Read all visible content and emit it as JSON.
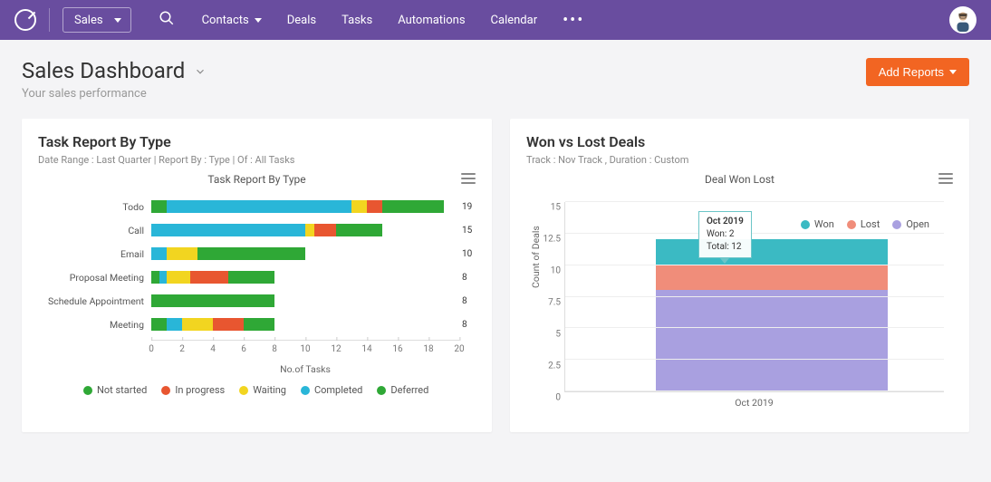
{
  "topbar": {
    "module": "Sales",
    "nav": {
      "contacts": "Contacts",
      "deals": "Deals",
      "tasks": "Tasks",
      "automations": "Automations",
      "calendar": "Calendar"
    }
  },
  "header": {
    "title": "Sales Dashboard",
    "subtitle": "Your sales performance",
    "add_reports": "Add Reports"
  },
  "colors": {
    "brand": "#694d9f",
    "accent": "#f26522",
    "page_bg": "#f4f4f6",
    "card_bg": "#ffffff"
  },
  "task_report": {
    "card_title": "Task Report By Type",
    "card_sub": "Date Range : Last Quarter | Report By : Type | Of : All Tasks",
    "chart_title": "Task Report By Type",
    "type": "stacked-horizontal-bar",
    "x_title": "No.of Tasks",
    "x_max": 20,
    "x_tick_step": 2,
    "status_colors": {
      "not_started": "#2fa836",
      "in_progress": "#e85630",
      "waiting": "#f2d520",
      "completed": "#29b6d8",
      "deferred": "#2fa836"
    },
    "legend": [
      {
        "label": "Not started",
        "key": "not_started"
      },
      {
        "label": "In progress",
        "key": "in_progress"
      },
      {
        "label": "Waiting",
        "key": "waiting"
      },
      {
        "label": "Completed",
        "key": "completed"
      },
      {
        "label": "Deferred",
        "key": "deferred"
      }
    ],
    "categories": [
      {
        "label": "Todo",
        "total": 19,
        "segments": [
          {
            "key": "not_started",
            "v": 1
          },
          {
            "key": "completed",
            "v": 12
          },
          {
            "key": "waiting",
            "v": 1
          },
          {
            "key": "in_progress",
            "v": 1
          },
          {
            "key": "deferred",
            "v": 4
          }
        ]
      },
      {
        "label": "Call",
        "total": 15,
        "segments": [
          {
            "key": "completed",
            "v": 10
          },
          {
            "key": "waiting",
            "v": 0.6
          },
          {
            "key": "in_progress",
            "v": 1.4
          },
          {
            "key": "deferred",
            "v": 3
          }
        ]
      },
      {
        "label": "Email",
        "total": 10,
        "segments": [
          {
            "key": "completed",
            "v": 1
          },
          {
            "key": "waiting",
            "v": 2
          },
          {
            "key": "deferred",
            "v": 7
          }
        ]
      },
      {
        "label": "Proposal Meeting",
        "total": 8,
        "segments": [
          {
            "key": "not_started",
            "v": 0.5
          },
          {
            "key": "completed",
            "v": 0.5
          },
          {
            "key": "waiting",
            "v": 1.5
          },
          {
            "key": "in_progress",
            "v": 2.5
          },
          {
            "key": "deferred",
            "v": 3
          }
        ]
      },
      {
        "label": "Schedule Appointment",
        "total": 8,
        "segments": [
          {
            "key": "deferred",
            "v": 8
          }
        ]
      },
      {
        "label": "Meeting",
        "total": 8,
        "segments": [
          {
            "key": "not_started",
            "v": 1
          },
          {
            "key": "completed",
            "v": 1
          },
          {
            "key": "waiting",
            "v": 2
          },
          {
            "key": "in_progress",
            "v": 2
          },
          {
            "key": "deferred",
            "v": 2
          }
        ]
      }
    ]
  },
  "won_lost": {
    "card_title": "Won vs Lost Deals",
    "card_sub": "Track : Nov Track ,  Duration : Custom",
    "chart_title": "Deal Won Lost",
    "type": "stacked-column",
    "y_title": "Count of Deals",
    "y_max": 15,
    "y_tick_step": 2.5,
    "series_colors": {
      "won": "#3bbac3",
      "lost": "#f08d7a",
      "open": "#a9a0e0"
    },
    "legend": [
      {
        "label": "Won",
        "key": "won"
      },
      {
        "label": "Lost",
        "key": "lost"
      },
      {
        "label": "Open",
        "key": "open"
      }
    ],
    "category": "Oct 2019",
    "stack": {
      "open": 8,
      "lost": 2,
      "won": 2
    },
    "total": 12,
    "tooltip": {
      "title": "Oct 2019",
      "line1": "Won: 2",
      "line2": "Total: 12"
    }
  }
}
